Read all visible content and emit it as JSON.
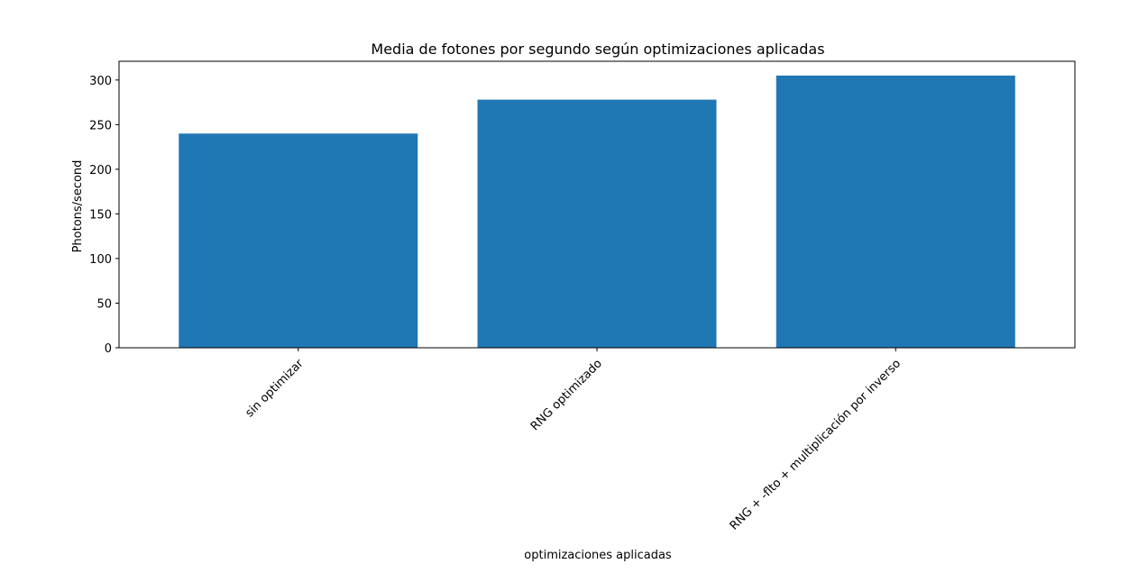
{
  "chart_data": {
    "type": "bar",
    "title": "Media de fotones por segundo según optimizaciones aplicadas",
    "xlabel": "optimizaciones aplicadas",
    "ylabel": "Photons/second",
    "categories": [
      "sin optimizar",
      "RNG optimizado",
      "RNG + -flto + multiplicación por inverso"
    ],
    "values": [
      240,
      278,
      305
    ],
    "ylim": [
      0,
      321
    ],
    "yticks": [
      0,
      50,
      100,
      150,
      200,
      250,
      300
    ],
    "ytick_labels": [
      "0",
      "50",
      "100",
      "150",
      "200",
      "250",
      "300"
    ],
    "x_tick_rotation_deg": 45,
    "grid": false,
    "legend": "none",
    "bar_color": "#1f77b4"
  }
}
